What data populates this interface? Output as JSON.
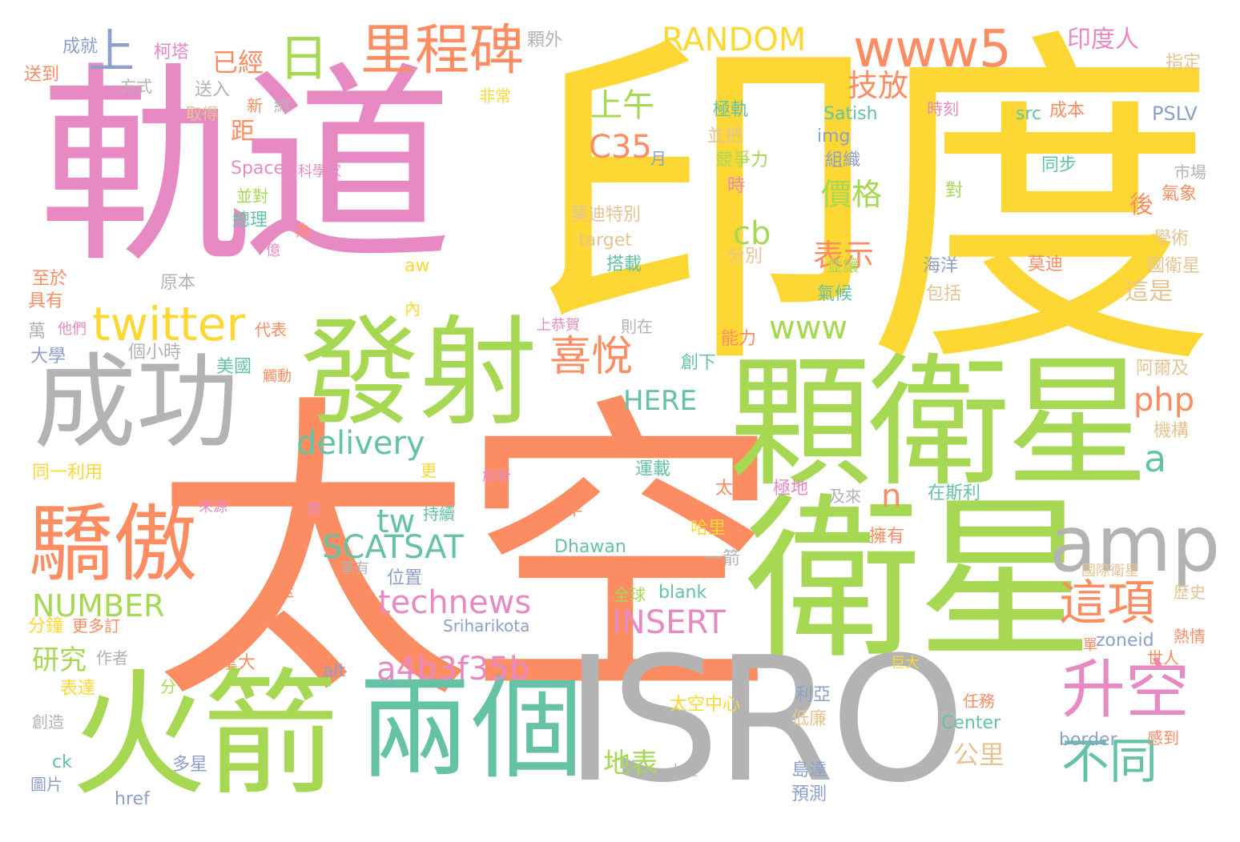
{
  "palette": {
    "yellow": "#fdd835",
    "orange": "#fc8d62",
    "pink": "#e78ac3",
    "green": "#a6d854",
    "teal": "#66c2a5",
    "gray": "#b3b3b3",
    "blue": "#8da0cb",
    "tan": "#e5c494"
  },
  "words": [
    "印度",
    "太空",
    "軌道",
    "衛星",
    "顆衛星",
    "ISRO",
    "發射",
    "火箭",
    "成功",
    "兩個",
    "驕傲",
    "里程碑",
    "amp",
    "升空",
    "www5",
    "twitter",
    "喜悅",
    "這項",
    "不同",
    "日",
    "上",
    "RANDOM",
    "技放",
    "cb",
    "上午",
    "C35",
    "價格",
    "www",
    "表示",
    "delivery",
    "php",
    "a",
    "a4b3f35b",
    "technews",
    "SCATSAT",
    "NUMBER",
    "INSERT",
    "HERE",
    "tw",
    "n",
    "研究",
    "地表",
    "公里",
    "已經",
    "印度人",
    "成就",
    "柯塔",
    "送到",
    "方式",
    "送入",
    "新",
    "約",
    "顆外",
    "指定",
    "非常",
    "取得",
    "極軌",
    "Satish",
    "src",
    "成本",
    "時刻",
    "PSLV",
    "img",
    "組織",
    "並把",
    "競爭力",
    "時",
    "同步",
    "市場",
    "氣象",
    "對",
    "後",
    "距",
    "Space",
    "科學家",
    "月",
    "並對",
    "總理",
    "為",
    "億",
    "莫迪特別",
    "target",
    "分別",
    "搭載",
    "繼",
    "aw",
    "海洋",
    "並讓",
    "莫迪",
    "國衛星",
    "學術",
    "原本",
    "至於",
    "具有",
    "內",
    "這是",
    "包括",
    "氣候",
    "萬",
    "他們",
    "代表",
    "大學",
    "個小時",
    "上恭賀",
    "則在",
    "能力",
    "阿爾及",
    "創下",
    "美國",
    "觸動",
    "機構",
    "同一利用",
    "更",
    "創新",
    "運載",
    "太陽",
    "極地",
    "及來",
    "在斯利",
    "來源",
    "康",
    "持續",
    "今年",
    "哈里",
    "擁有",
    "Dhawan",
    "一箭",
    "享有",
    "國際衛星",
    "送",
    "全球",
    "blank",
    "歷史",
    "分鐘",
    "更多訂",
    "作者",
    "加拿大",
    "Sriharikota",
    "熱情",
    "單",
    "zoneid",
    "位置",
    "巨大",
    "世人",
    "分",
    "alt",
    "表達",
    "創造",
    "太空中心",
    "利亞",
    "低廉",
    "任務",
    "Center",
    "感到",
    "border",
    "ck",
    "多星",
    "上述",
    "島達",
    "預測",
    "圖片",
    "href"
  ]
}
